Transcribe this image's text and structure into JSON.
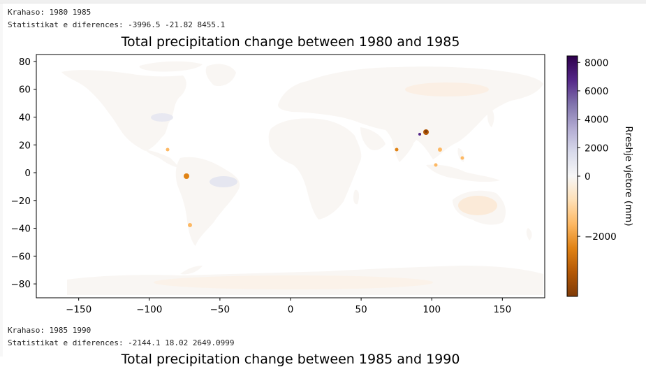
{
  "output1": {
    "line1": "Krahaso: 1980 1985",
    "line2": "Statistikat e diferences: -3996.5 -21.82 8455.1"
  },
  "output2": {
    "line1": "Krahaso: 1985 1990",
    "line2": "Statistikat e diferences: -2144.1 18.02 2649.0999"
  },
  "next_title": "Total precipitation change between 1985 and 1990",
  "chart_data": {
    "type": "heatmap",
    "title": "Total precipitation change between 1980 and 1985",
    "xlim": [
      -180,
      180
    ],
    "ylim": [
      -90,
      85
    ],
    "xticks": [
      -150,
      -100,
      -50,
      0,
      50,
      100,
      150
    ],
    "yticks": [
      -80,
      -60,
      -40,
      -20,
      0,
      20,
      40,
      60,
      80
    ],
    "grid": false,
    "colorbar": {
      "label": "Rreshje vjetore (mm)",
      "min": -3996.5,
      "max": 8455.1,
      "ticks": [
        -2000,
        0,
        2000,
        4000,
        6000,
        8000
      ],
      "colors": [
        "#7f3b08",
        "#b35806",
        "#e08214",
        "#fdb863",
        "#fee0b6",
        "#f7f7f7",
        "#d8daeb",
        "#b2abd2",
        "#8073ac",
        "#542788",
        "#2d004b"
      ]
    },
    "stats": {
      "min": -3996.5,
      "mean": -21.82,
      "max": 8455.1
    }
  }
}
